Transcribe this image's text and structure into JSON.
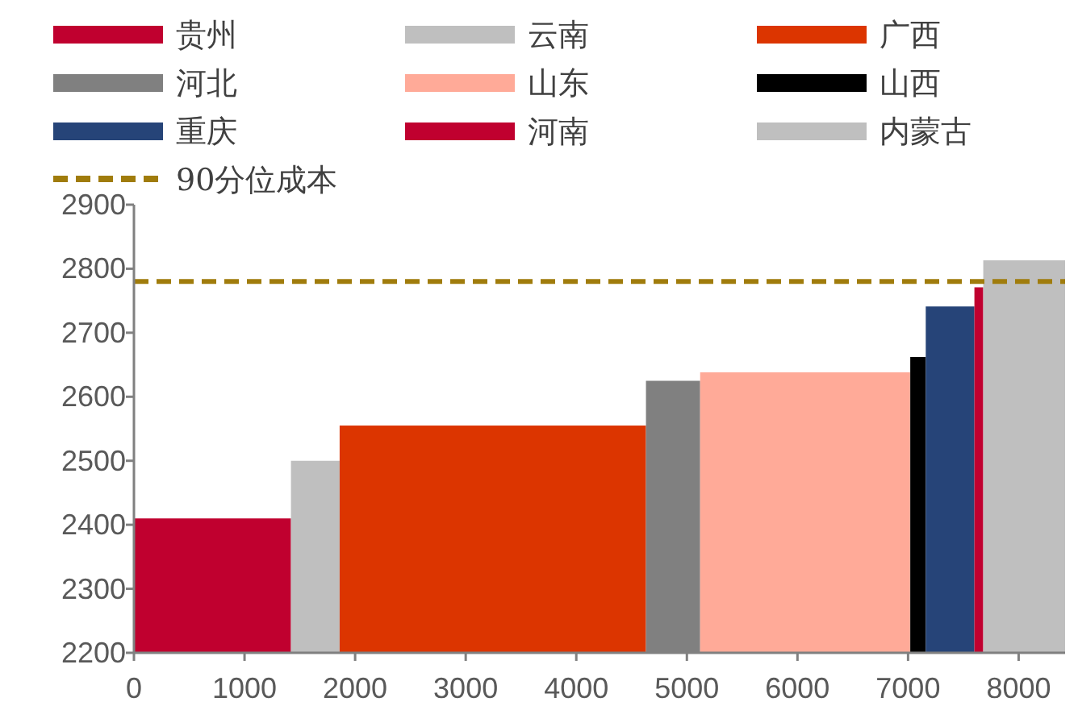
{
  "chart_data": {
    "type": "area",
    "xlim": [
      0,
      8420
    ],
    "xticks": [
      0,
      1000,
      2000,
      3000,
      4000,
      5000,
      6000,
      7000,
      8000
    ],
    "ylim": [
      2200,
      2900
    ],
    "yticks": [
      2200,
      2300,
      2400,
      2500,
      2600,
      2700,
      2800,
      2900
    ],
    "grid": false,
    "legend": "top",
    "series": [
      {
        "name": "贵州",
        "color": "#c0002f",
        "x": [
          0,
          1420
        ],
        "values": [
          2410,
          2410
        ]
      },
      {
        "name": "云南",
        "color": "#bfbfbf",
        "x": [
          1420,
          1860
        ],
        "values": [
          2500,
          2500
        ]
      },
      {
        "name": "广西",
        "color": "#dc3500",
        "x": [
          1860,
          4630
        ],
        "values": [
          2555,
          2555
        ]
      },
      {
        "name": "河北",
        "color": "#808080",
        "x": [
          4630,
          5120
        ],
        "values": [
          2625,
          2625
        ]
      },
      {
        "name": "山东",
        "color": "#ffaa98",
        "x": [
          5120,
          7020
        ],
        "values": [
          2638,
          2638
        ]
      },
      {
        "name": "山西",
        "color": "#000000",
        "x": [
          7020,
          7160
        ],
        "values": [
          2662,
          2662
        ]
      },
      {
        "name": "重庆",
        "color": "#264478",
        "x": [
          7160,
          7600
        ],
        "values": [
          2741,
          2741
        ]
      },
      {
        "name": "河南",
        "color": "#c0002f",
        "x": [
          7600,
          7680
        ],
        "values": [
          2771,
          2771
        ]
      },
      {
        "name": "内蒙古",
        "color": "#bfbfbf",
        "x": [
          7680,
          8420
        ],
        "values": [
          2813,
          2813
        ]
      }
    ],
    "ref_lines": [
      {
        "axis": "y",
        "value": 2780,
        "label": "90分位成本",
        "color": "#a07c0c",
        "line_style": "dashed"
      }
    ]
  }
}
